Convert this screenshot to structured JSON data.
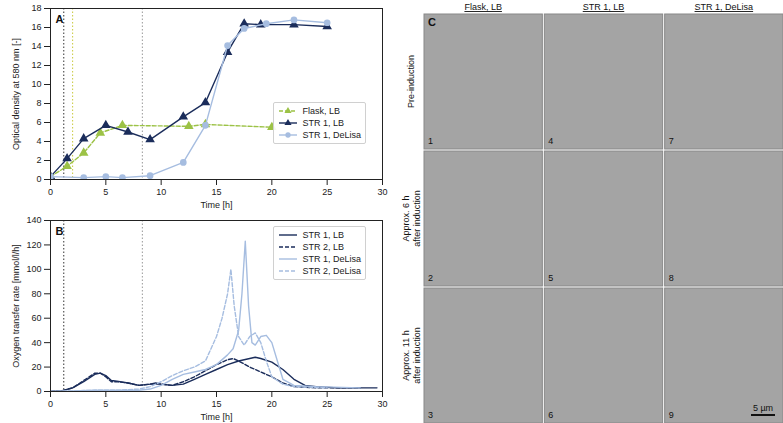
{
  "chart_data": [
    {
      "type": "line",
      "title": "A",
      "x_label": "Time [h]",
      "y_label": "Optical density at 580 nm [-]",
      "xlim": [
        0,
        30
      ],
      "ylim": [
        0,
        18
      ],
      "xticks": [
        0,
        5,
        10,
        15,
        20,
        25,
        30
      ],
      "yticks": [
        0,
        2,
        4,
        6,
        8,
        10,
        12,
        14,
        16,
        18
      ],
      "legend": "center right",
      "annotations": [
        {
          "type": "vline",
          "x": 1.2,
          "color": "#333333",
          "line_style": "dotted"
        },
        {
          "type": "vline",
          "x": 2.0,
          "color": "#c8c83a",
          "line_style": "dotted"
        },
        {
          "type": "vline",
          "x": 8.3,
          "color": "#999999",
          "line_style": "dotted"
        }
      ],
      "series": [
        {
          "name": "Flask, LB",
          "color": "#9cc246",
          "marker": "triangle",
          "line_style": "dashed",
          "x": [
            0,
            1.5,
            3,
            4.5,
            6.5,
            12.5,
            14,
            20
          ],
          "values": [
            0.3,
            1.4,
            2.8,
            4.9,
            5.7,
            5.6,
            5.8,
            5.5
          ]
        },
        {
          "name": "STR 1, LB",
          "color": "#1b2d5b",
          "marker": "triangle",
          "line_style": "solid",
          "x": [
            0,
            1.5,
            3,
            5,
            7,
            9,
            12,
            14,
            16,
            17.5,
            19,
            22,
            25
          ],
          "values": [
            0.3,
            2.2,
            4.3,
            5.7,
            5.0,
            4.2,
            6.6,
            8.1,
            13.4,
            16.4,
            16.3,
            16.3,
            16.1
          ]
        },
        {
          "name": "STR 1, DeLisa",
          "color": "#a6bde0",
          "marker": "circle",
          "line_style": "solid",
          "x": [
            0,
            3,
            5,
            6.5,
            9,
            12,
            14,
            16,
            17.5,
            19.5,
            22,
            25
          ],
          "values": [
            0.3,
            0.2,
            0.3,
            0.2,
            0.4,
            1.8,
            5.7,
            14.1,
            15.9,
            16.4,
            16.8,
            16.5
          ]
        }
      ]
    },
    {
      "type": "line",
      "title": "B",
      "x_label": "Time [h]",
      "y_label": "Oxygen transfer rate [mmol/l/h]",
      "xlim": [
        0,
        30
      ],
      "ylim": [
        0,
        140
      ],
      "xticks": [
        0,
        5,
        10,
        15,
        20,
        25,
        30
      ],
      "yticks": [
        0,
        20,
        40,
        60,
        80,
        100,
        120,
        140
      ],
      "legend": "upper right",
      "annotations": [
        {
          "type": "vline",
          "x": 1.2,
          "color": "#333333",
          "line_style": "dotted"
        },
        {
          "type": "vline",
          "x": 8.3,
          "color": "#999999",
          "line_style": "dotted"
        }
      ],
      "series": [
        {
          "name": "STR 1, LB",
          "color": "#1b2d5b",
          "marker": "none",
          "line_style": "solid",
          "x": [
            0,
            1,
            2,
            3,
            4,
            4.5,
            5,
            5.5,
            6,
            7,
            8,
            9,
            9.5,
            10,
            11,
            12,
            13,
            14,
            15,
            16,
            17,
            18,
            18.5,
            19,
            20,
            21,
            22,
            23,
            24,
            26,
            29.5
          ],
          "values": [
            0,
            0.5,
            3,
            8,
            14,
            15,
            13,
            9,
            8.5,
            7,
            5,
            6,
            7,
            6,
            5,
            6,
            10,
            14,
            18,
            22,
            25,
            27,
            28,
            27,
            24,
            18,
            10,
            5,
            4,
            3,
            3
          ]
        },
        {
          "name": "STR 2, LB",
          "color": "#1b2d5b",
          "marker": "none",
          "line_style": "dashed",
          "x": [
            0,
            1,
            2,
            3,
            4,
            4.5,
            5,
            5.5,
            6,
            7,
            8,
            9,
            10,
            11,
            12,
            13,
            14,
            15,
            16,
            16.5,
            17,
            18,
            19,
            20,
            21,
            22,
            24,
            28
          ],
          "values": [
            0,
            0.5,
            3,
            9,
            15,
            15,
            12,
            8,
            8,
            7,
            5,
            6,
            6,
            5,
            8,
            12,
            17,
            22,
            26,
            27,
            25,
            20,
            16,
            12,
            7,
            4,
            3,
            3
          ]
        },
        {
          "name": "STR 1, DeLisa",
          "color": "#a6bde0",
          "marker": "none",
          "line_style": "solid",
          "x": [
            0,
            2,
            4,
            6,
            8,
            9,
            10,
            11,
            12,
            13,
            14,
            15,
            16,
            16.5,
            17,
            17.3,
            17.6,
            17.9,
            18.2,
            18.5,
            19,
            19.5,
            20,
            20.5,
            21,
            22,
            24,
            28
          ],
          "values": [
            0,
            0.5,
            1,
            1,
            1,
            2,
            5,
            10,
            14,
            16,
            18,
            22,
            30,
            35,
            50,
            80,
            123,
            70,
            40,
            38,
            45,
            46,
            40,
            25,
            10,
            5,
            4,
            3
          ]
        },
        {
          "name": "STR 2, DeLisa",
          "color": "#a6bde0",
          "marker": "none",
          "line_style": "dashed",
          "x": [
            0,
            2,
            4,
            6,
            8,
            9,
            10,
            11,
            12,
            13,
            14,
            15,
            15.5,
            16,
            16.3,
            16.6,
            17,
            17.5,
            18,
            18.5,
            19,
            19.5,
            20,
            21,
            22,
            25
          ],
          "values": [
            0,
            0.5,
            1,
            1,
            2,
            4,
            8,
            13,
            17,
            20,
            25,
            45,
            60,
            80,
            100,
            70,
            45,
            38,
            45,
            48,
            40,
            25,
            12,
            6,
            4,
            3
          ]
        }
      ]
    }
  ],
  "image_grid": {
    "title": "C",
    "columns": [
      "Flask, LB",
      "STR 1, LB",
      "STR 1, DeLisa"
    ],
    "rows": [
      [
        "Pre-induction"
      ],
      [
        "Approx. 6 h",
        "after induction"
      ],
      [
        "Approx. 11 h",
        "after induction"
      ]
    ],
    "panel_numbers": [
      [
        1,
        4,
        7
      ],
      [
        2,
        5,
        8
      ],
      [
        3,
        6,
        9
      ]
    ],
    "scale_bar": "5 µm"
  }
}
